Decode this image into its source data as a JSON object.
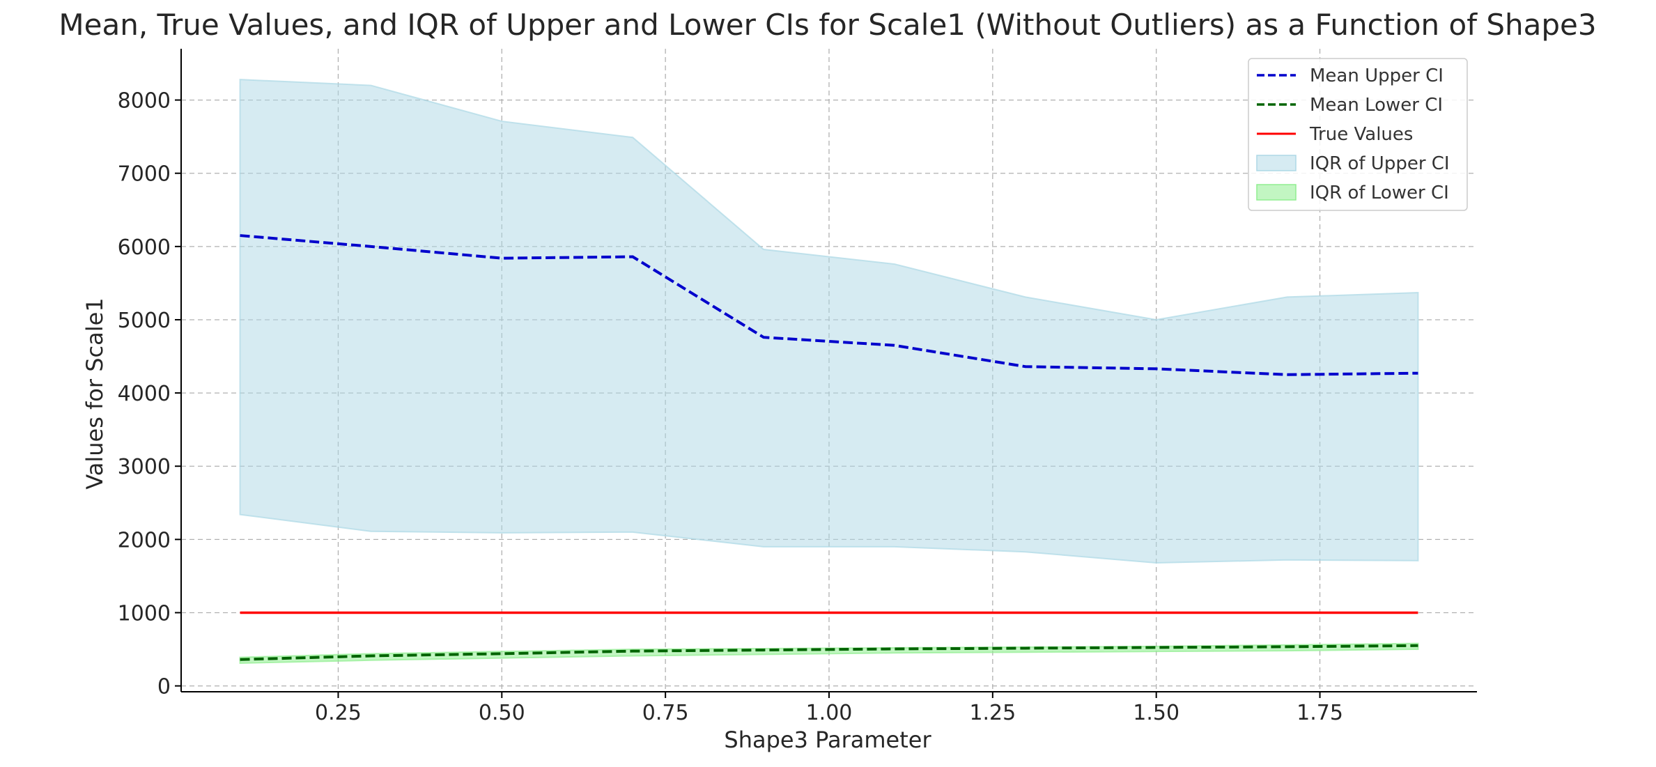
{
  "chart_data": {
    "type": "line",
    "title": "Mean, True Values, and IQR of Upper and Lower CIs for Scale1 (Without Outliers) as a Function of Shape3",
    "xlabel": "Shape3 Parameter",
    "ylabel": "Values for Scale1",
    "xlim": [
      0.01,
      1.99
    ],
    "ylim": [
      -80,
      8700
    ],
    "xticks": [
      "0.25",
      "0.50",
      "0.75",
      "1.00",
      "1.25",
      "1.50",
      "1.75"
    ],
    "yticks": [
      "0",
      "1000",
      "2000",
      "3000",
      "4000",
      "5000",
      "6000",
      "7000",
      "8000"
    ],
    "grid": true,
    "legend_position": "top-right",
    "x": [
      0.1,
      0.3,
      0.5,
      0.7,
      0.9,
      1.1,
      1.3,
      1.5,
      1.7,
      1.9
    ],
    "series": [
      {
        "name": "Mean Upper CI",
        "style": "dashed",
        "color": "#0000cc",
        "values": [
          6150,
          6000,
          5840,
          5860,
          4760,
          4650,
          4360,
          4330,
          4250,
          4270
        ]
      },
      {
        "name": "Mean Lower CI",
        "style": "dashed",
        "color": "#006400",
        "values": [
          360,
          410,
          440,
          475,
          490,
          505,
          515,
          525,
          535,
          550
        ]
      },
      {
        "name": "True Values",
        "style": "solid",
        "color": "#ff0000",
        "values": [
          1000,
          1000,
          1000,
          1000,
          1000,
          1000,
          1000,
          1000,
          1000,
          1000
        ]
      }
    ],
    "bands": [
      {
        "name": "IQR of Upper CI",
        "color": "#add8e6",
        "upper": [
          8280,
          8200,
          7710,
          7490,
          5960,
          5760,
          5310,
          5000,
          5310,
          5370
        ],
        "lower": [
          2340,
          2110,
          2090,
          2100,
          1900,
          1900,
          1830,
          1680,
          1720,
          1710
        ]
      },
      {
        "name": "IQR of Lower CI",
        "color": "#90ee90",
        "upper": [
          390,
          440,
          470,
          500,
          510,
          520,
          530,
          540,
          560,
          580
        ],
        "lower": [
          310,
          350,
          380,
          410,
          430,
          450,
          460,
          470,
          480,
          500
        ]
      }
    ]
  }
}
